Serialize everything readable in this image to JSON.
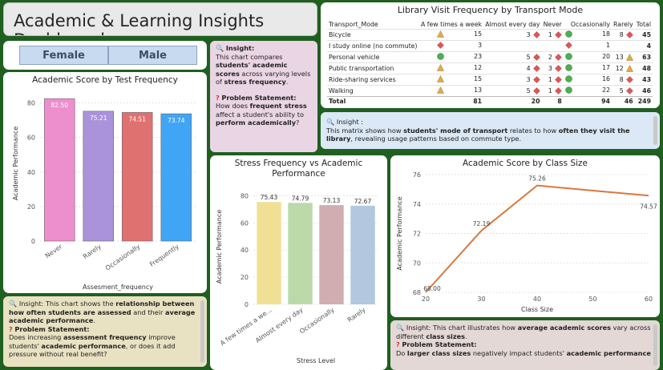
{
  "title": "Academic & Learning Insights Dashboard",
  "slicer": {
    "options": [
      "Female",
      "Male"
    ]
  },
  "colors": {
    "background": "#1f5f1f",
    "orange_line": "#d9773c",
    "green_icon": "#4caf50",
    "red_icon": "#e05555",
    "yellow_icon": "#e0a94a"
  },
  "test_freq_chart": {
    "title": "Academic Score by Test Frequency",
    "chart_data": {
      "type": "bar",
      "categories": [
        "Never",
        "Rarely",
        "Occasionally",
        "Frequently"
      ],
      "values": [
        82.5,
        75.21,
        74.51,
        73.74
      ],
      "value_labels": [
        "82.50",
        "75.21",
        "74.51",
        "73.74"
      ],
      "colors": [
        "#ee8fcd",
        "#ab93dc",
        "#e07171",
        "#41a5f6"
      ],
      "xlabel": "Assesment_frequency",
      "ylabel": "Academic Performance",
      "ylim": [
        0,
        90
      ],
      "yticks": [
        0,
        20,
        40,
        60,
        80
      ],
      "grid": true
    }
  },
  "insight_top": {
    "heading": "Insight:",
    "pre": "This chart compares ",
    "b1": "students' academic scores",
    "mid": " across varying levels of ",
    "b2": "stress frequency",
    "post": ".",
    "problem_heading": "Problem Statement:",
    "p_pre": "How does ",
    "p_b1": "frequent stress",
    "p_mid": " affect a student's ability to ",
    "p_b2": "perform academically",
    "p_post": "?"
  },
  "library_matrix": {
    "title": "Library Visit Frequency by Transport Mode",
    "columns": [
      "Transport_Mode",
      "A few times a week",
      "Almost every day",
      "Never",
      "Occasionally",
      "Rarely",
      "Total"
    ],
    "rows": [
      {
        "mode": "Bicycle",
        "few": "15",
        "few_icon": "triangle",
        "daily": "3",
        "daily_icon": "diamond",
        "never": "1",
        "never_icon": "diamond",
        "occ": "18",
        "occ_icon": "circle",
        "rarely": "8",
        "rarely_icon": "diamond",
        "total": "45"
      },
      {
        "mode": "I study online (no commute)",
        "few": "3",
        "few_icon": "diamond",
        "daily": "",
        "daily_icon": "",
        "never": "",
        "never_icon": "",
        "occ": "1",
        "occ_icon": "diamond",
        "rarely": "",
        "rarely_icon": "",
        "total": "4"
      },
      {
        "mode": "Personal vehicle",
        "few": "23",
        "few_icon": "circle",
        "daily": "5",
        "daily_icon": "diamond",
        "never": "2",
        "never_icon": "diamond",
        "occ": "20",
        "occ_icon": "circle",
        "rarely": "13",
        "rarely_icon": "triangle",
        "total": "63"
      },
      {
        "mode": "Public transportation",
        "few": "12",
        "few_icon": "triangle",
        "daily": "4",
        "daily_icon": "diamond",
        "never": "3",
        "never_icon": "diamond",
        "occ": "17",
        "occ_icon": "circle",
        "rarely": "12",
        "rarely_icon": "triangle",
        "total": "48"
      },
      {
        "mode": "Ride-sharing services",
        "few": "15",
        "few_icon": "triangle",
        "daily": "3",
        "daily_icon": "diamond",
        "never": "1",
        "never_icon": "diamond",
        "occ": "16",
        "occ_icon": "circle",
        "rarely": "8",
        "rarely_icon": "diamond",
        "total": "43"
      },
      {
        "mode": "Walking",
        "few": "13",
        "few_icon": "triangle",
        "daily": "5",
        "daily_icon": "diamond",
        "never": "1",
        "never_icon": "diamond",
        "occ": "22",
        "occ_icon": "circle",
        "rarely": "5",
        "rarely_icon": "diamond",
        "total": "46"
      }
    ],
    "total_row": {
      "mode": "Total",
      "few": "81",
      "daily": "20",
      "never": "8",
      "occ": "94",
      "rarely": "46",
      "total": "249"
    }
  },
  "insight_matrix": {
    "heading": "Insight :",
    "pre": "This matrix shows how ",
    "b1": "students' mode of transport",
    "mid": " relates to how ",
    "b2": "often they visit the library",
    "post": ", revealing usage patterns based on commute type."
  },
  "stress_chart": {
    "title": "Stress Frequency vs Academic Performance",
    "chart_data": {
      "type": "bar",
      "categories": [
        "A few times a we...",
        "Almost every day",
        "Occasionally",
        "Rarely"
      ],
      "values": [
        75.43,
        74.79,
        73.13,
        72.67
      ],
      "value_labels": [
        "75.43",
        "74.79",
        "73.13",
        "72.67"
      ],
      "colors": [
        "#efe095",
        "#bcdaa9",
        "#d1adb1",
        "#b2c8de"
      ],
      "xlabel": "Stress Level",
      "ylabel": "Academic Performance",
      "ylim": [
        0,
        85
      ],
      "yticks": [
        0,
        20,
        40,
        60,
        80
      ],
      "grid": true
    }
  },
  "class_size_chart": {
    "title": "Academic Score by Class Size",
    "chart_data": {
      "type": "line",
      "x": [
        20,
        30,
        40,
        60
      ],
      "y": [
        68.0,
        72.19,
        75.26,
        74.57
      ],
      "value_labels": [
        "68.00",
        "72.19",
        "75.26",
        "74.57"
      ],
      "xlabel": "Class Size",
      "ylabel": "Academic Performance",
      "xlim": [
        20,
        60
      ],
      "ylim": [
        68,
        76
      ],
      "xticks": [
        20,
        30,
        40,
        50,
        60
      ],
      "yticks": [
        68,
        70,
        72,
        74,
        76
      ],
      "grid": true
    }
  },
  "insight_bottom_left": {
    "heading": "Insight:",
    "pre": " This chart shows the ",
    "b1": "relationship between how often students are assessed",
    "mid": " and their ",
    "b2": "average academic performance",
    "post": ".",
    "problem_heading": "Problem Statement:",
    "p_pre": "Does increasing ",
    "p_b1": "assessment frequency",
    "p_mid": " improve students' ",
    "p_b2": "academic performance",
    "p_post": ", or does it add pressure without real benefit?"
  },
  "insight_bottom_right": {
    "heading": "Insight:",
    "pre": " This chart illustrates how ",
    "b1": "average academic scores",
    "mid": " vary across different ",
    "b2": "class sizes",
    "post": ".",
    "problem_heading": "Problem Statement:",
    "p_pre": "Do ",
    "p_b1": "larger class sizes",
    "p_mid": " negatively impact students' ",
    "p_b2": "academic performance",
    "p_post": ""
  }
}
